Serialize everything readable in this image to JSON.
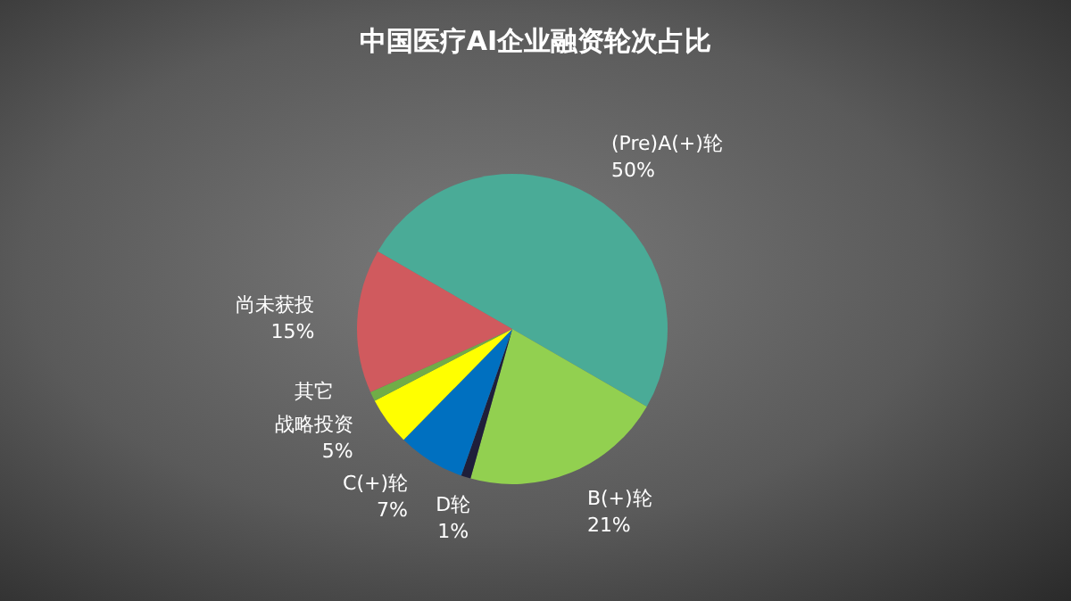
{
  "chart_data": {
    "type": "pie",
    "title": "中国医疗AI企业融资轮次占比",
    "categories": [
      "(Pre)A(+)轮",
      "B(+)轮",
      "D轮",
      "C(+)轮",
      "战略投资",
      "其它",
      "尚未获投"
    ],
    "values": [
      50,
      21,
      1,
      7,
      5,
      1,
      15
    ],
    "colors": [
      "#4aab97",
      "#92d050",
      "#1f1f3a",
      "#0070c0",
      "#ffff00",
      "#70ad47",
      "#d05a5e"
    ],
    "value_labels": [
      "50%",
      "21%",
      "1%",
      "7%",
      "5%",
      null,
      "15%"
    ]
  }
}
